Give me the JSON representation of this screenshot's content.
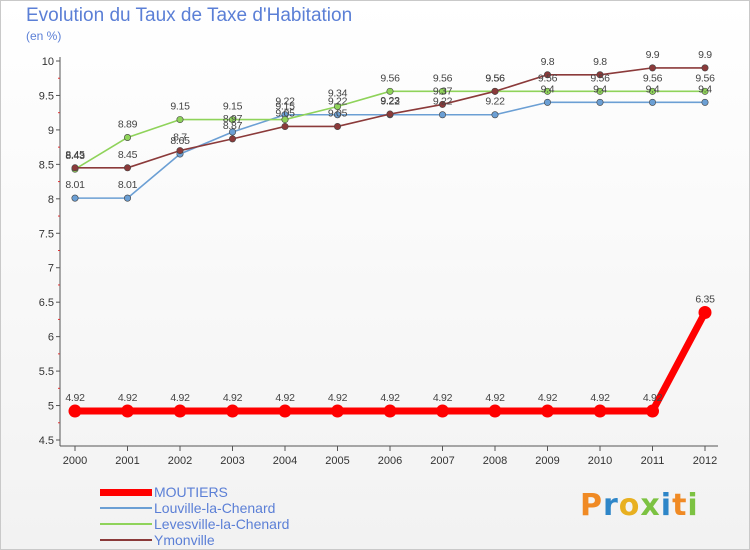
{
  "title": "Evolution du Taux de Taxe d'Habitation",
  "subtitle": "(en %)",
  "logo": {
    "text": "Proxiti",
    "colors": [
      "#f08a24",
      "#2e86c8",
      "#e8b020",
      "#7cc242",
      "#2e86c8",
      "#f08a24",
      "#7cc242"
    ]
  },
  "chart_data": {
    "type": "line",
    "x": [
      "2000",
      "2001",
      "2002",
      "2003",
      "2004",
      "2005",
      "2006",
      "2007",
      "2008",
      "2009",
      "2010",
      "2011",
      "2012"
    ],
    "ylim": [
      4.5,
      10
    ],
    "yticks": [
      "4.5",
      "5",
      "5.5",
      "6",
      "6.5",
      "7",
      "7.5",
      "8",
      "8.5",
      "9",
      "9.5",
      "10"
    ],
    "grid": false,
    "legend_position": "bottom-left",
    "series": [
      {
        "name": "MOUTIERS",
        "color": "#ff0000",
        "values": [
          4.92,
          4.92,
          4.92,
          4.92,
          4.92,
          4.92,
          4.92,
          4.92,
          4.92,
          4.92,
          4.92,
          4.92,
          6.35
        ],
        "labels": [
          "4.92",
          "4.92",
          "4.92",
          "4.92",
          "4.92",
          "4.92",
          "4.92",
          "4.92",
          "4.92",
          "4.92",
          "4.92",
          "4.92",
          "6.35"
        ]
      },
      {
        "name": "Louville-la-Chenard",
        "color": "#6b9fd4",
        "values": [
          8.01,
          8.01,
          8.65,
          8.97,
          9.22,
          9.22,
          9.22,
          9.22,
          9.22,
          9.4,
          9.4,
          9.4,
          9.4
        ],
        "labels": [
          "8.01",
          "8.01",
          "8.65",
          "8.97",
          "9.22",
          "9.22",
          "9.22",
          "9.22",
          "9.22",
          "9.4",
          "9.4",
          "9.4",
          "9.4"
        ]
      },
      {
        "name": "Levesville-la-Chenard",
        "color": "#8fd35a",
        "values": [
          8.43,
          8.89,
          9.15,
          9.15,
          9.15,
          9.34,
          9.56,
          9.56,
          9.56,
          9.56,
          9.56,
          9.56,
          9.56
        ],
        "labels": [
          "8.43",
          "8.89",
          "9.15",
          "9.15",
          "9.15",
          "9.34",
          "9.56",
          "9.56",
          "9.56",
          "9.56",
          "9.56",
          "9.56",
          "9.56"
        ]
      },
      {
        "name": "Ymonville",
        "color": "#8b3a3a",
        "values": [
          8.45,
          8.45,
          8.7,
          8.87,
          9.05,
          9.05,
          9.23,
          9.37,
          9.56,
          9.8,
          9.8,
          9.9,
          9.9
        ],
        "labels": [
          "8.45",
          "8.45",
          "8.7",
          "8.87",
          "9.05",
          "9.05",
          "9.23",
          "9.37",
          "9.56",
          "9.8",
          "9.8",
          "9.9",
          "9.9"
        ]
      }
    ]
  }
}
